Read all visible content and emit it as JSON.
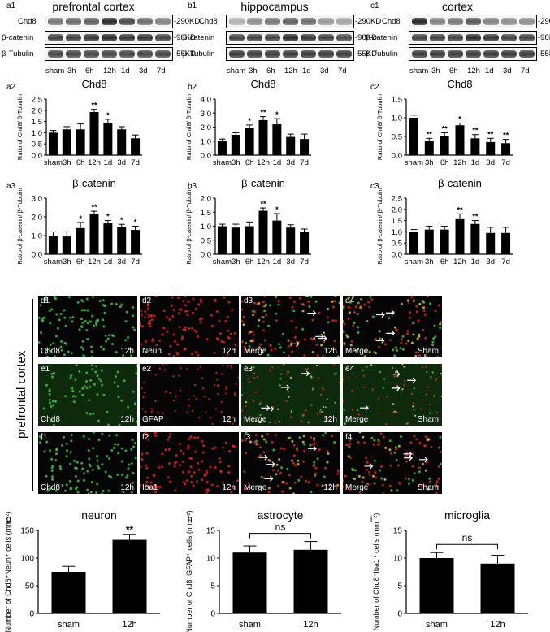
{
  "western": [
    {
      "id": "a1",
      "title": "prefrontal cortex",
      "rows": [
        "Chd8",
        "β-catenin",
        "β-Tubulin"
      ],
      "kd": [
        "-290KD",
        "-98KD",
        "-55KD"
      ],
      "lanes": [
        "sham",
        "3h",
        "6h",
        "12h",
        "1d",
        "3d",
        "7d"
      ]
    },
    {
      "id": "b1",
      "title": "hippocampus",
      "rows": [
        "Chd8",
        "β-catenin",
        "β-Tubulin"
      ],
      "kd": [
        "-290KD",
        "-98KD",
        "-55KD"
      ],
      "lanes": [
        "sham",
        "3h",
        "6h",
        "12h",
        "1d",
        "3d",
        "7d"
      ]
    },
    {
      "id": "c1",
      "title": "cortex",
      "rows": [
        "Chd8",
        "β-catenin",
        "β-Tubulin"
      ],
      "kd": [
        "-290KD",
        "-98KD",
        "-55KD"
      ],
      "lanes": [
        "sham",
        "3h",
        "6h",
        "12h",
        "1d",
        "3d",
        "7d"
      ]
    }
  ],
  "chart_data": [
    {
      "id": "a2",
      "type": "bar",
      "title": "Chd8",
      "ylabel": "Ratio of Chd8/ β-Tubulin",
      "categories": [
        "sham",
        "3h",
        "6h",
        "12h",
        "1d",
        "3d",
        "7d"
      ],
      "values": [
        1.0,
        1.15,
        1.15,
        1.92,
        1.45,
        1.15,
        0.75
      ],
      "errors": [
        0.1,
        0.12,
        0.25,
        0.12,
        0.15,
        0.12,
        0.15
      ],
      "sig": [
        "",
        "",
        "",
        "**",
        "*",
        "",
        ""
      ],
      "ylim": [
        0,
        2.5
      ],
      "ticks": [
        "0.0",
        "0.5",
        "1.0",
        "1.5",
        "2.0",
        "2.5"
      ]
    },
    {
      "id": "b2",
      "type": "bar",
      "title": "Chd8",
      "ylabel": "Ratio of Chd8/ β-Tubulin",
      "categories": [
        "sham",
        "3h",
        "6h",
        "12h",
        "1d",
        "3d",
        "7d"
      ],
      "values": [
        1.0,
        1.45,
        1.95,
        2.5,
        2.2,
        1.3,
        1.15
      ],
      "errors": [
        0.15,
        0.15,
        0.2,
        0.25,
        0.4,
        0.2,
        0.35
      ],
      "sig": [
        "",
        "",
        "*",
        "**",
        "*",
        "",
        ""
      ],
      "ylim": [
        0,
        4
      ],
      "ticks": [
        "0.0",
        "1.0",
        "2.0",
        "3.0",
        "4.0"
      ]
    },
    {
      "id": "c2",
      "type": "bar",
      "title": "Chd8",
      "ylabel": "Ratio of Chd8/ β-Tubulin",
      "categories": [
        "sham",
        "3h",
        "6h",
        "12h",
        "1d",
        "3d",
        "7d"
      ],
      "values": [
        1.0,
        0.38,
        0.5,
        0.8,
        0.45,
        0.35,
        0.32
      ],
      "errors": [
        0.07,
        0.07,
        0.1,
        0.06,
        0.1,
        0.1,
        0.1
      ],
      "sig": [
        "",
        "**",
        "**",
        "*",
        "**",
        "**",
        "**"
      ],
      "ylim": [
        0,
        1.5
      ],
      "ticks": [
        "0.0",
        "0.5",
        "1.0",
        "1.5"
      ]
    },
    {
      "id": "a3",
      "type": "bar",
      "title": "β-catenin",
      "ylabel": "Ratio of β-catenin/ β-Tubulin",
      "categories": [
        "sham",
        "3h",
        "6h",
        "12h",
        "1d",
        "3d",
        "7d"
      ],
      "values": [
        1.0,
        0.95,
        1.4,
        2.15,
        1.65,
        1.45,
        1.3
      ],
      "errors": [
        0.2,
        0.25,
        0.3,
        0.15,
        0.15,
        0.15,
        0.2
      ],
      "sig": [
        "",
        "",
        "*",
        "**",
        "*",
        "*",
        "*"
      ],
      "ylim": [
        0,
        3
      ],
      "ticks": [
        "0.0",
        "1.0",
        "2.0",
        "3.0"
      ]
    },
    {
      "id": "b3",
      "type": "bar",
      "title": "β-catenin",
      "ylabel": "Ratio of β-catenin/ β-Tubulin",
      "categories": [
        "sham",
        "3h",
        "6h",
        "12h",
        "1d",
        "3d",
        "7d"
      ],
      "values": [
        1.0,
        0.95,
        1.0,
        1.55,
        1.2,
        0.95,
        0.8
      ],
      "errors": [
        0.07,
        0.12,
        0.15,
        0.1,
        0.25,
        0.1,
        0.1
      ],
      "sig": [
        "",
        "",
        "",
        "**",
        "*",
        "",
        ""
      ],
      "ylim": [
        0,
        2
      ],
      "ticks": [
        "0.0",
        "0.5",
        "1.0",
        "1.5",
        "2.0"
      ]
    },
    {
      "id": "c3",
      "type": "bar",
      "title": "β-catenin",
      "ylabel": "Ratio of β-catenin/ β-Tubulin",
      "categories": [
        "sham",
        "3h",
        "6h",
        "12h",
        "1d",
        "3d",
        "7d"
      ],
      "values": [
        1.0,
        1.1,
        1.1,
        1.6,
        1.35,
        0.95,
        0.95
      ],
      "errors": [
        0.1,
        0.15,
        0.15,
        0.2,
        0.15,
        0.25,
        0.25
      ],
      "sig": [
        "",
        "",
        "",
        "**",
        "**",
        "",
        ""
      ],
      "ylim": [
        0,
        2.5
      ],
      "ticks": [
        "0.0",
        "0.5",
        "1.0",
        "1.5",
        "2.0",
        "2.5"
      ]
    },
    {
      "id": "g",
      "type": "bar",
      "title": "neuron",
      "ylabel": "Number of Chd8⁺Neun⁺ cells (mm⁻²)",
      "categories": [
        "sham",
        "12h"
      ],
      "values": [
        75,
        133
      ],
      "errors": [
        10,
        10
      ],
      "sig": [
        "",
        "**"
      ],
      "ylim": [
        0,
        150
      ],
      "ticks": [
        "0",
        "50",
        "100",
        "150"
      ]
    },
    {
      "id": "h",
      "type": "bar",
      "title": "astrocyte",
      "ylabel": "Number of Chd8⁺GFAP⁺ cells (mm⁻²)",
      "categories": [
        "sham",
        "12h"
      ],
      "values": [
        11,
        11.5
      ],
      "errors": [
        1.2,
        1.5
      ],
      "sig": [
        "",
        ""
      ],
      "bracket": "ns",
      "ylim": [
        0,
        15
      ],
      "ticks": [
        "0",
        "5",
        "10",
        "15"
      ]
    },
    {
      "id": "i",
      "type": "bar",
      "title": "microglia",
      "ylabel": "Number of Chd8⁺Iba1⁺ cells (mm⁻²)",
      "categories": [
        "sham",
        "12h"
      ],
      "values": [
        10,
        9
      ],
      "errors": [
        1,
        1.5
      ],
      "sig": [
        "",
        ""
      ],
      "bracket": "ns",
      "ylim": [
        0,
        15
      ],
      "ticks": [
        "0",
        "5",
        "10",
        "15"
      ]
    }
  ],
  "micro": {
    "side_label": "prefrontal cortex",
    "rows": [
      [
        {
          "id": "d1",
          "label": "Chd8",
          "time": "12h",
          "type": "green"
        },
        {
          "id": "d2",
          "label": "Neun",
          "time": "12h",
          "type": "red"
        },
        {
          "id": "d3",
          "label": "Merge",
          "time": "12h",
          "type": "merge"
        },
        {
          "id": "d4",
          "label": "Merge",
          "time": "Sham",
          "type": "merge"
        }
      ],
      [
        {
          "id": "e1",
          "label": "Chd8",
          "time": "12h",
          "type": "green"
        },
        {
          "id": "e2",
          "label": "GFAP",
          "time": "12h",
          "type": "red"
        },
        {
          "id": "e3",
          "label": "Merge",
          "time": "12h",
          "type": "merge"
        },
        {
          "id": "e4",
          "label": "Merge",
          "time": "Sham",
          "type": "merge"
        }
      ],
      [
        {
          "id": "f1",
          "label": "Chd8",
          "time": "12h",
          "type": "green"
        },
        {
          "id": "f2",
          "label": "Iba1",
          "time": "12h",
          "type": "red"
        },
        {
          "id": "f3",
          "label": "Merge",
          "time": "12h",
          "type": "merge"
        },
        {
          "id": "f4",
          "label": "Merge",
          "time": "Sham",
          "type": "merge"
        }
      ]
    ]
  },
  "colors": {
    "bar": "#000000",
    "green": "#3ec23e",
    "red": "#e0221c",
    "background": "#050505"
  }
}
